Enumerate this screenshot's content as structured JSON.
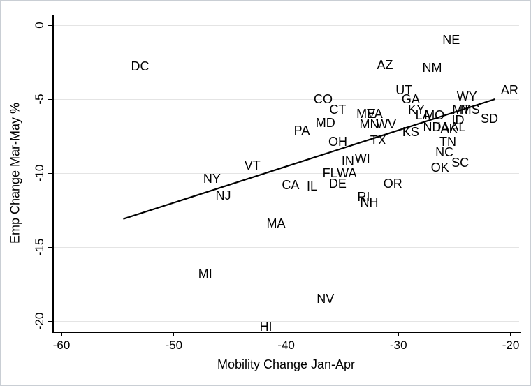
{
  "figure": {
    "background": "#ffffff",
    "border_color": "#c9ced4",
    "text_color": "#000000",
    "grid_color": "#e4e4e4",
    "axis_color": "#000000"
  },
  "chart_data": {
    "type": "scatter",
    "marker_style": "state-abbreviation-text-labels",
    "title": "",
    "xlabel": "Mobility Change Jan-Apr",
    "ylabel": "Emp Change Mar-May %",
    "xlim": [
      -62,
      -19
    ],
    "ylim": [
      -21.5,
      0.7
    ],
    "x_ticks": [
      -60,
      -50,
      -40,
      -30,
      -20
    ],
    "y_ticks": [
      0,
      -5,
      -10,
      -15,
      -20
    ],
    "grid": "horizontal-only",
    "legend": "none",
    "fit_line": {
      "x1": -54.5,
      "y1": -13.1,
      "x2": -21.4,
      "y2": -5.0,
      "color": "#000000",
      "width": 2.2
    },
    "points": [
      {
        "label": "DC",
        "x": -53.0,
        "y": -2.8
      },
      {
        "label": "NE",
        "x": -25.3,
        "y": -1.0
      },
      {
        "label": "AZ",
        "x": -31.2,
        "y": -2.7
      },
      {
        "label": "NM",
        "x": -27.0,
        "y": -2.9
      },
      {
        "label": "AR",
        "x": -20.1,
        "y": -4.4
      },
      {
        "label": "UT",
        "x": -29.5,
        "y": -4.4
      },
      {
        "label": "WY",
        "x": -23.9,
        "y": -4.8
      },
      {
        "label": "CO",
        "x": -36.7,
        "y": -5.0
      },
      {
        "label": "GA",
        "x": -28.9,
        "y": -5.0
      },
      {
        "label": "CT",
        "x": -35.4,
        "y": -5.7
      },
      {
        "label": "KY",
        "x": -28.4,
        "y": -5.7
      },
      {
        "label": "MT",
        "x": -24.4,
        "y": -5.7
      },
      {
        "label": "MS",
        "x": -23.6,
        "y": -5.7
      },
      {
        "label": "ME",
        "x": -32.9,
        "y": -6.0
      },
      {
        "label": "VA",
        "x": -32.1,
        "y": -6.0
      },
      {
        "label": "LA",
        "x": -27.8,
        "y": -6.1
      },
      {
        "label": "MO",
        "x": -26.8,
        "y": -6.1
      },
      {
        "label": "SD",
        "x": -21.9,
        "y": -6.3
      },
      {
        "label": "ID",
        "x": -24.7,
        "y": -6.4
      },
      {
        "label": "MD",
        "x": -36.5,
        "y": -6.6
      },
      {
        "label": "MN",
        "x": -32.6,
        "y": -6.7
      },
      {
        "label": "WV",
        "x": -31.1,
        "y": -6.7
      },
      {
        "label": "ND",
        "x": -27.0,
        "y": -6.9
      },
      {
        "label": "IA",
        "x": -26.0,
        "y": -6.9
      },
      {
        "label": "AL",
        "x": -24.7,
        "y": -6.9
      },
      {
        "label": "AK",
        "x": -25.5,
        "y": -7.0
      },
      {
        "label": "PA",
        "x": -38.6,
        "y": -7.1
      },
      {
        "label": "KS",
        "x": -28.9,
        "y": -7.2
      },
      {
        "label": "TX",
        "x": -31.8,
        "y": -7.8
      },
      {
        "label": "OH",
        "x": -35.4,
        "y": -7.9
      },
      {
        "label": "TN",
        "x": -25.6,
        "y": -7.9
      },
      {
        "label": "NC",
        "x": -25.9,
        "y": -8.6
      },
      {
        "label": "WI",
        "x": -33.2,
        "y": -9.0
      },
      {
        "label": "IN",
        "x": -34.5,
        "y": -9.2
      },
      {
        "label": "SC",
        "x": -24.5,
        "y": -9.3
      },
      {
        "label": "VT",
        "x": -43.0,
        "y": -9.5
      },
      {
        "label": "OK",
        "x": -26.3,
        "y": -9.6
      },
      {
        "label": "FL",
        "x": -36.1,
        "y": -10.0
      },
      {
        "label": "WA",
        "x": -34.6,
        "y": -10.0
      },
      {
        "label": "NY",
        "x": -46.6,
        "y": -10.4
      },
      {
        "label": "DE",
        "x": -35.4,
        "y": -10.7
      },
      {
        "label": "OR",
        "x": -30.5,
        "y": -10.7
      },
      {
        "label": "CA",
        "x": -39.6,
        "y": -10.8
      },
      {
        "label": "IL",
        "x": -37.7,
        "y": -10.9
      },
      {
        "label": "NJ",
        "x": -45.6,
        "y": -11.5
      },
      {
        "label": "RI",
        "x": -33.1,
        "y": -11.6
      },
      {
        "label": "NH",
        "x": -32.6,
        "y": -12.0
      },
      {
        "label": "MA",
        "x": -40.9,
        "y": -13.4
      },
      {
        "label": "MI",
        "x": -47.2,
        "y": -16.8
      },
      {
        "label": "NV",
        "x": -36.5,
        "y": -18.5
      },
      {
        "label": "HI",
        "x": -41.8,
        "y": -20.4
      }
    ]
  }
}
